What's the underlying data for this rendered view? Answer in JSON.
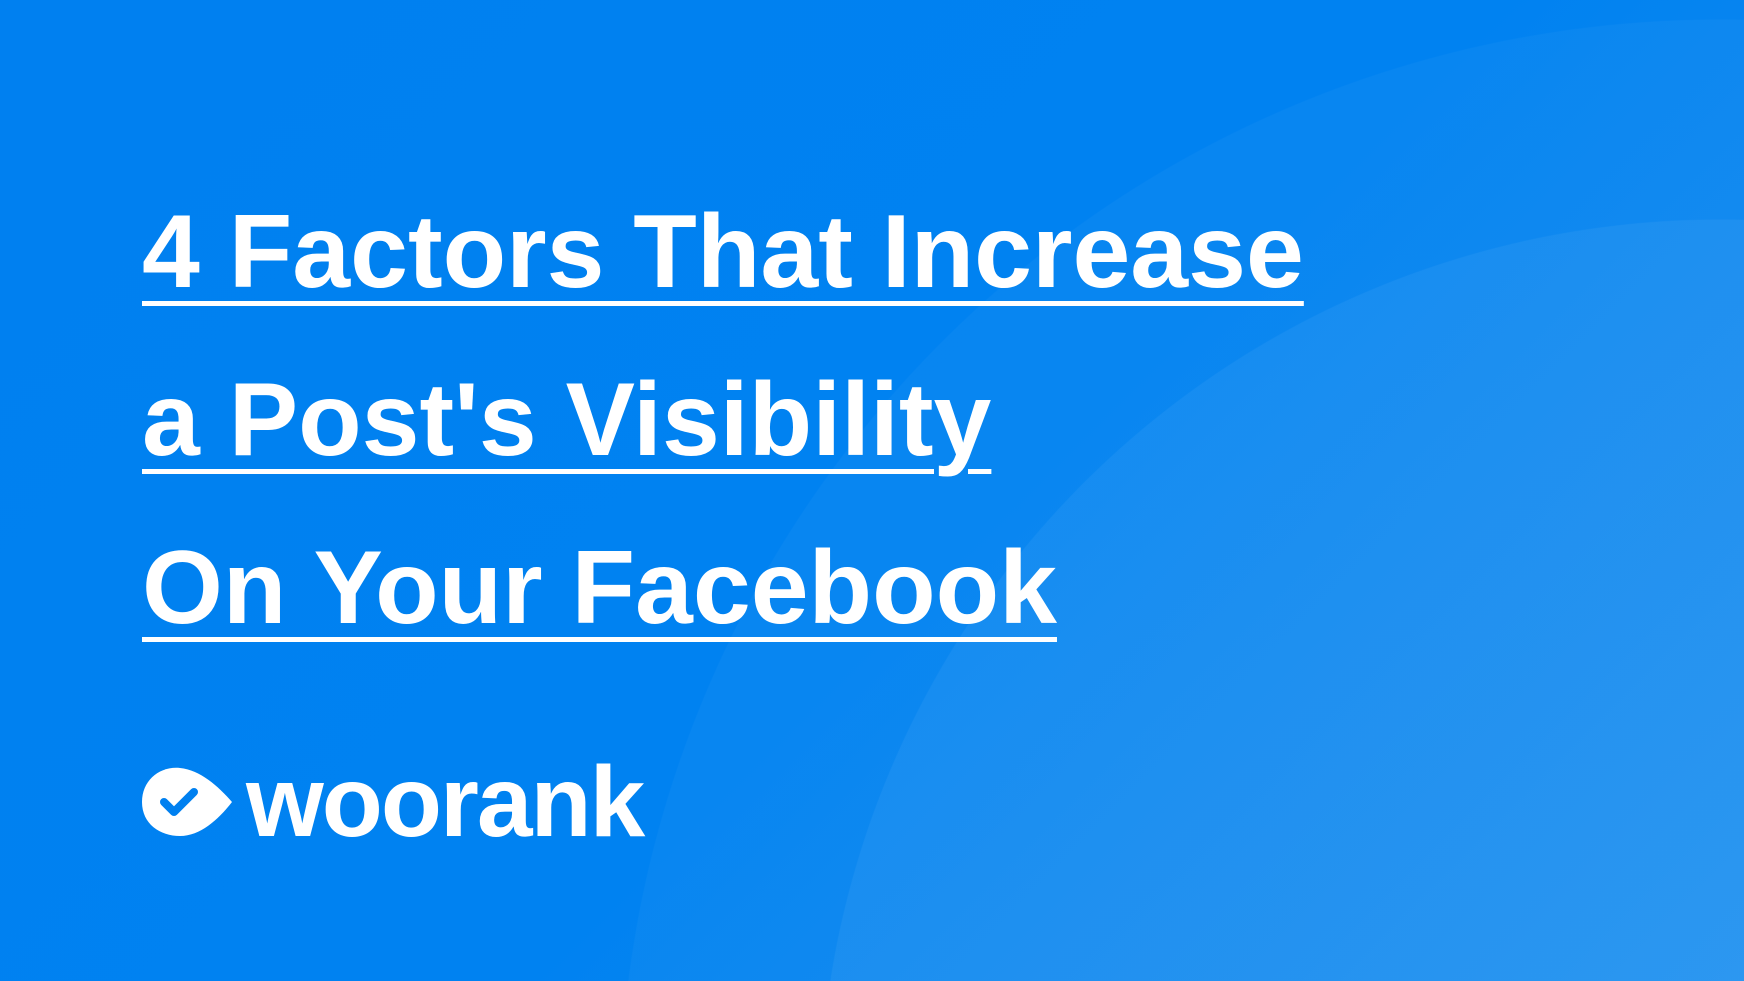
{
  "title": {
    "lines": [
      "4 Factors That Increase",
      "a Post's Visibility",
      "On Your Facebook"
    ]
  },
  "logo": {
    "text": "woorank",
    "icon": "check-eye-icon"
  },
  "colors": {
    "background": "#0080f0",
    "text": "#ffffff"
  }
}
